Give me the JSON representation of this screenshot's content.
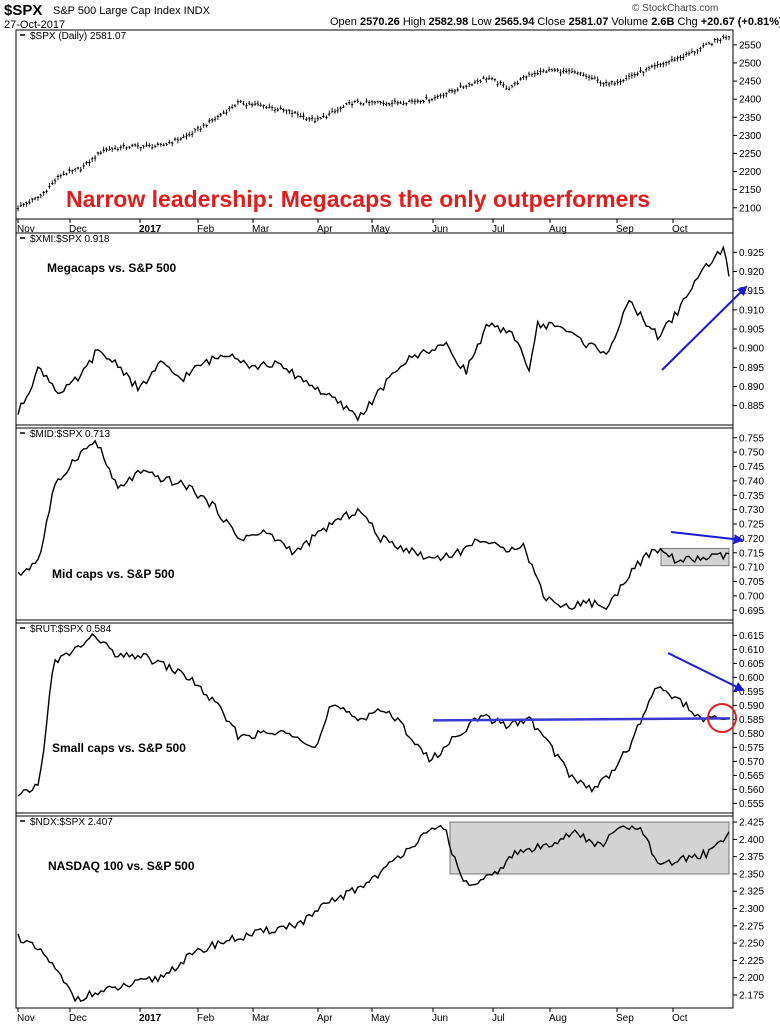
{
  "header": {
    "symbol": "$SPX",
    "name": "S&P 500 Large Cap Index INDX",
    "date": "27-Oct-2017",
    "open_label": "Open",
    "open": "2570.26",
    "high_label": "High",
    "high": "2582.98",
    "low_label": "Low",
    "low": "2565.94",
    "close_label": "Close",
    "close": "2581.07",
    "volume_label": "Volume",
    "volume": "2.6B",
    "chg_label": "Chg",
    "chg": "+20.67 (+0.81%)",
    "brand": "© StockCharts.com"
  },
  "headline": "Narrow leadership: Megacaps the only outperformers",
  "colors": {
    "headline": "#e01e1e",
    "arrow": "#1a1ad8",
    "level_line": "#3a3ad0",
    "circle": "#e01e1e",
    "shade": "#d3d3d3",
    "line": "#000000"
  },
  "chart_data": {
    "type": "line",
    "x_axis": {
      "ticks": [
        "Nov",
        "Dec",
        "2017",
        "Feb",
        "Mar",
        "Apr",
        "May",
        "Jun",
        "Jul",
        "Aug",
        "Sep",
        "Oct"
      ],
      "bold_ticks": [
        "2017"
      ]
    },
    "panels": [
      {
        "label": "$SPX (Daily) 2581.07",
        "style": "ohlc",
        "ylim": [
          2080,
          2580
        ],
        "yticks": [
          2100,
          2150,
          2200,
          2250,
          2300,
          2350,
          2400,
          2450,
          2500,
          2550
        ],
        "x": [
          0,
          0.03,
          0.06,
          0.09,
          0.12,
          0.16,
          0.2,
          0.24,
          0.28,
          0.31,
          0.35,
          0.39,
          0.42,
          0.47,
          0.53,
          0.58,
          0.62,
          0.66,
          0.69,
          0.72,
          0.75,
          0.79,
          0.83,
          0.87,
          0.91,
          0.95,
          0.98,
          1.0
        ],
        "values": [
          2100,
          2130,
          2190,
          2210,
          2260,
          2270,
          2270,
          2300,
          2350,
          2390,
          2380,
          2360,
          2340,
          2390,
          2390,
          2400,
          2430,
          2460,
          2430,
          2470,
          2480,
          2470,
          2440,
          2470,
          2500,
          2530,
          2560,
          2575
        ]
      },
      {
        "label": "$XMI:$SPX 0.918",
        "annotation": "Megacaps vs. S&P 500",
        "ylim": [
          0.881,
          0.929
        ],
        "yticks": [
          0.885,
          0.89,
          0.895,
          0.9,
          0.905,
          0.91,
          0.915,
          0.92,
          0.925
        ],
        "x": [
          0,
          0.03,
          0.06,
          0.09,
          0.11,
          0.14,
          0.17,
          0.2,
          0.23,
          0.26,
          0.3,
          0.33,
          0.36,
          0.4,
          0.44,
          0.48,
          0.51,
          0.54,
          0.57,
          0.6,
          0.63,
          0.66,
          0.7,
          0.72,
          0.73,
          0.76,
          0.8,
          0.83,
          0.86,
          0.9,
          0.93,
          0.95,
          0.98,
          0.995,
          1.0
        ],
        "values": [
          0.883,
          0.895,
          0.888,
          0.893,
          0.899,
          0.896,
          0.889,
          0.896,
          0.892,
          0.896,
          0.899,
          0.895,
          0.896,
          0.892,
          0.887,
          0.882,
          0.889,
          0.896,
          0.899,
          0.901,
          0.894,
          0.906,
          0.903,
          0.894,
          0.906,
          0.906,
          0.901,
          0.899,
          0.912,
          0.903,
          0.91,
          0.917,
          0.924,
          0.926,
          0.918
        ]
      },
      {
        "label": "$MID:$SPX 0.713",
        "annotation": "Mid caps vs. S&P 500",
        "ylim": [
          0.693,
          0.757
        ],
        "yticks": [
          0.695,
          0.7,
          0.705,
          0.71,
          0.715,
          0.72,
          0.725,
          0.73,
          0.735,
          0.74,
          0.745,
          0.75,
          0.755
        ],
        "x": [
          0,
          0.03,
          0.05,
          0.08,
          0.11,
          0.14,
          0.17,
          0.2,
          0.24,
          0.28,
          0.31,
          0.35,
          0.39,
          0.44,
          0.48,
          0.51,
          0.54,
          0.58,
          0.62,
          0.65,
          0.68,
          0.71,
          0.74,
          0.77,
          0.8,
          0.83,
          0.86,
          0.88,
          0.9,
          0.93,
          0.96,
          1.0
        ],
        "values": [
          0.707,
          0.713,
          0.737,
          0.748,
          0.754,
          0.737,
          0.743,
          0.741,
          0.738,
          0.73,
          0.72,
          0.722,
          0.715,
          0.725,
          0.73,
          0.72,
          0.717,
          0.713,
          0.715,
          0.72,
          0.716,
          0.718,
          0.7,
          0.696,
          0.698,
          0.696,
          0.708,
          0.713,
          0.716,
          0.712,
          0.713,
          0.714
        ]
      },
      {
        "label": "$RUT:$SPX 0.584",
        "annotation": "Small caps vs. S&P 500",
        "ylim": [
          0.553,
          0.618
        ],
        "yticks": [
          0.555,
          0.56,
          0.565,
          0.57,
          0.575,
          0.58,
          0.585,
          0.59,
          0.595,
          0.6,
          0.605,
          0.61,
          0.615
        ],
        "level": 0.585,
        "x": [
          0,
          0.03,
          0.05,
          0.08,
          0.11,
          0.14,
          0.17,
          0.2,
          0.24,
          0.28,
          0.31,
          0.35,
          0.39,
          0.42,
          0.44,
          0.48,
          0.51,
          0.54,
          0.58,
          0.62,
          0.65,
          0.69,
          0.72,
          0.75,
          0.78,
          0.81,
          0.83,
          0.86,
          0.88,
          0.9,
          0.93,
          0.96,
          1.0
        ],
        "values": [
          0.557,
          0.562,
          0.605,
          0.61,
          0.615,
          0.607,
          0.608,
          0.605,
          0.6,
          0.59,
          0.579,
          0.58,
          0.58,
          0.575,
          0.59,
          0.585,
          0.589,
          0.583,
          0.57,
          0.58,
          0.586,
          0.583,
          0.585,
          0.575,
          0.564,
          0.56,
          0.565,
          0.575,
          0.587,
          0.597,
          0.592,
          0.585,
          0.585
        ]
      },
      {
        "label": "$NDX:$SPX 2.407",
        "annotation": "NASDAQ 100 vs. S&P 500",
        "ylim": [
          2.162,
          2.428
        ],
        "yticks": [
          2.175,
          2.2,
          2.225,
          2.25,
          2.275,
          2.3,
          2.325,
          2.35,
          2.375,
          2.4,
          2.425
        ],
        "x": [
          0,
          0.04,
          0.08,
          0.12,
          0.16,
          0.2,
          0.24,
          0.28,
          0.32,
          0.36,
          0.4,
          0.44,
          0.48,
          0.52,
          0.55,
          0.58,
          0.6,
          0.62,
          0.64,
          0.67,
          0.7,
          0.74,
          0.78,
          0.82,
          0.85,
          0.88,
          0.9,
          0.93,
          0.97,
          1.0
        ],
        "values": [
          2.26,
          2.23,
          2.17,
          2.18,
          2.19,
          2.2,
          2.23,
          2.25,
          2.26,
          2.27,
          2.28,
          2.31,
          2.33,
          2.36,
          2.39,
          2.41,
          2.42,
          2.35,
          2.33,
          2.35,
          2.38,
          2.39,
          2.41,
          2.39,
          2.42,
          2.41,
          2.36,
          2.37,
          2.38,
          2.41
        ]
      }
    ]
  }
}
